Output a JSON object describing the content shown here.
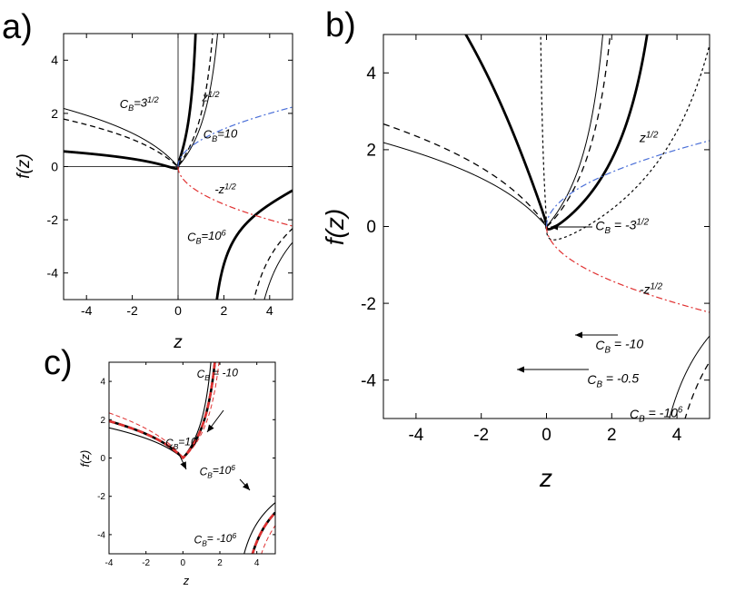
{
  "chart_data": [
    {
      "id": "a",
      "panel_letter": "a)",
      "type": "line",
      "xlabel": "z",
      "ylabel": "f(z)",
      "xlim": [
        -5,
        5
      ],
      "ylim": [
        -5,
        5
      ],
      "xticks": [
        -4,
        -2,
        0,
        2,
        4
      ],
      "yticks": [
        -4,
        -2,
        0,
        2,
        4
      ],
      "xtick_labels": [
        "-4",
        "-2",
        "0",
        "2",
        "4"
      ],
      "ytick_labels": [
        "-4",
        "-2",
        "0",
        "2",
        "4"
      ],
      "zero_lines": true,
      "annotations": [
        {
          "text": "C",
          "sub": "B",
          "rest": "=3",
          "sup": "1/2",
          "x": -2.55,
          "y": 2.2
        },
        {
          "text": "z",
          "sub": "",
          "rest": "",
          "sup": "1/2",
          "x": 1.05,
          "y": 2.45
        },
        {
          "text": "C",
          "sub": "B",
          "rest": "=10",
          "sup": "",
          "x": 1.1,
          "y": 1.05
        },
        {
          "text": "-z",
          "sub": "",
          "rest": "",
          "sup": "1/2",
          "x": 1.6,
          "y": -1.0
        },
        {
          "text": "C",
          "sub": "B",
          "rest": "=10",
          "sup": "6",
          "x": 0.4,
          "y": -2.8
        }
      ],
      "series": [
        {
          "name": "C_B = 3^1/2",
          "kind": "fz",
          "cb": 1.732,
          "color": "#000000",
          "width": 2.8,
          "dash": ""
        },
        {
          "name": "C_B = 10",
          "kind": "fz",
          "cb": 10,
          "color": "#000000",
          "width": 1.3,
          "dash": "6,4"
        },
        {
          "name": "C_B = 10^6",
          "kind": "fz",
          "cb": 1000000,
          "color": "#000000",
          "width": 1.0,
          "dash": ""
        },
        {
          "name": "z^1/2",
          "kind": "sqrt",
          "sign": 1,
          "color": "#4a6fd8",
          "width": 1.2,
          "dash": "7,3,2,3"
        },
        {
          "name": "-z^1/2",
          "kind": "sqrt",
          "sign": -1,
          "color": "#e03030",
          "width": 1.2,
          "dash": "7,3,2,3"
        }
      ]
    },
    {
      "id": "b",
      "panel_letter": "b)",
      "type": "line",
      "xlabel": "z",
      "ylabel": "f(z)",
      "xlim": [
        -5,
        5
      ],
      "ylim": [
        -5,
        5
      ],
      "xticks": [
        -4,
        -2,
        0,
        2,
        4
      ],
      "yticks": [
        -4,
        -2,
        0,
        2,
        4
      ],
      "xtick_labels": [
        "-4",
        "-2",
        "0",
        "2",
        "4"
      ],
      "ytick_labels": [
        "-4",
        "-2",
        "0",
        "2",
        "4"
      ],
      "zero_lines": false,
      "annotations": [
        {
          "text": "z",
          "sub": "",
          "rest": "",
          "sup": "1/2",
          "x": 2.85,
          "y": 2.2
        },
        {
          "text": "C",
          "sub": "B",
          "rest": " = -3",
          "sup": "1/2",
          "x": 1.5,
          "y": -0.1
        },
        {
          "text": "-z",
          "sub": "",
          "rest": "",
          "sup": "1/2",
          "x": 2.85,
          "y": -1.75
        },
        {
          "text": "C",
          "sub": "B",
          "rest": " = -10",
          "sup": "",
          "x": 1.5,
          "y": -3.2
        },
        {
          "text": "C",
          "sub": "B",
          "rest": " = -0.5",
          "sup": "",
          "x": 1.25,
          "y": -4.1
        },
        {
          "text": "C",
          "sub": "B",
          "rest": " = -10",
          "sup": "6",
          "x": 2.55,
          "y": -5.0
        }
      ],
      "series": [
        {
          "name": "C_B = -3^1/2",
          "kind": "fz",
          "cb": -1.732,
          "color": "#000000",
          "width": 2.8,
          "dash": ""
        },
        {
          "name": "C_B = -10",
          "kind": "fz",
          "cb": -10,
          "color": "#000000",
          "width": 1.3,
          "dash": "7,5"
        },
        {
          "name": "C_B = -0.5",
          "kind": "fz",
          "cb": -0.5,
          "color": "#000000",
          "width": 1.2,
          "dash": "3,3"
        },
        {
          "name": "C_B = -10^6",
          "kind": "fz",
          "cb": -1000000,
          "color": "#000000",
          "width": 1.0,
          "dash": ""
        },
        {
          "name": "z^1/2",
          "kind": "sqrt",
          "sign": 1,
          "color": "#4a6fd8",
          "width": 1.2,
          "dash": "7,3,2,3"
        },
        {
          "name": "-z^1/2",
          "kind": "sqrt",
          "sign": -1,
          "color": "#e03030",
          "width": 1.2,
          "dash": "7,3,2,3"
        }
      ]
    },
    {
      "id": "c",
      "panel_letter": "c)",
      "type": "line",
      "xlabel": "z",
      "ylabel": "f(z)",
      "xlim": [
        -4,
        5
      ],
      "ylim": [
        -5,
        5
      ],
      "xticks": [
        -4,
        -2,
        0,
        2,
        4
      ],
      "yticks": [
        -4,
        -2,
        0,
        2,
        4
      ],
      "xtick_labels": [
        "-4",
        "-2",
        "0",
        "2",
        "4"
      ],
      "ytick_labels": [
        "-4",
        "-2",
        "0",
        "2",
        "4"
      ],
      "zero_lines": false,
      "annotations": [
        {
          "text": "C",
          "sub": "B",
          "rest": " = -10",
          "sup": "",
          "x": 0.75,
          "y": 4.2
        },
        {
          "text": "C",
          "sub": "B",
          "rest": "=10",
          "sup": "",
          "x": -0.95,
          "y": 0.6
        },
        {
          "text": "C",
          "sub": "B",
          "rest": "=10",
          "sup": "6",
          "x": 0.9,
          "y": -0.9
        },
        {
          "text": "C",
          "sub": "B",
          "rest": "= -10",
          "sup": "6",
          "x": 0.6,
          "y": -4.45
        }
      ],
      "series": [
        {
          "name": "C_B = 10",
          "kind": "fz",
          "cb": 10,
          "color": "#000000",
          "width": 1.1,
          "dash": ""
        },
        {
          "name": "C_B = 10^6",
          "kind": "fz",
          "cb": 1000000,
          "color": "#000000",
          "width": 2.6,
          "dash": ""
        },
        {
          "name": "C_B = -10",
          "kind": "fz",
          "cb": -10,
          "color": "#e03030",
          "width": 1.0,
          "dash": "5,3"
        },
        {
          "name": "C_B = -10^6",
          "kind": "fz",
          "cb": -1000000,
          "color": "#e03030",
          "width": 2.6,
          "dash": "7,4"
        }
      ]
    }
  ]
}
